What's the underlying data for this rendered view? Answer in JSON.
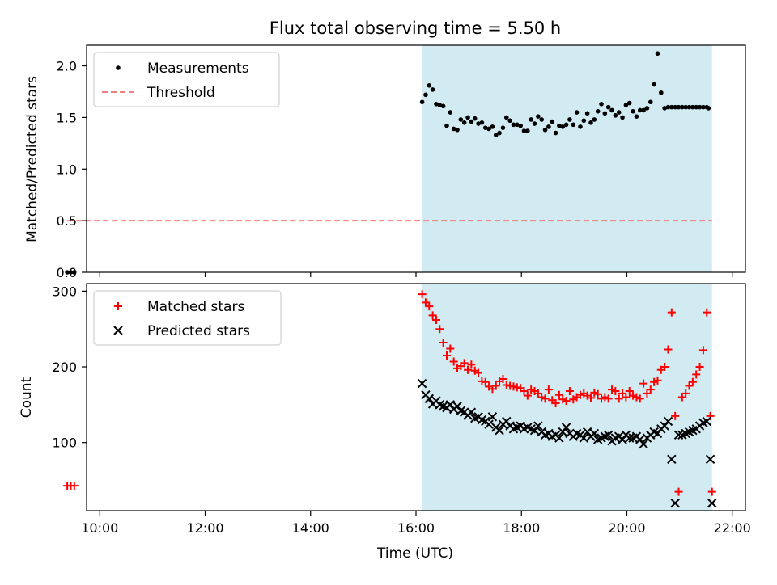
{
  "figure": {
    "title": "Flux total observing time = 5.50 h"
  },
  "colors": {
    "measurements": "#000000",
    "threshold": "#f08080",
    "matched": "#ff0000",
    "predicted": "#000000",
    "shade": "#add8e6"
  },
  "chart_data": [
    {
      "type": "scatter",
      "ylabel": "Matched/Predicted stars",
      "xlabel": "",
      "xlim": [
        "09:45",
        "22:15"
      ],
      "ylim": [
        0,
        2.2
      ],
      "yticks": [
        0.0,
        0.5,
        1.0,
        1.5,
        2.0
      ],
      "ytick_labels": [
        "0.0",
        "0.5",
        "1.0",
        "1.5",
        "2.0"
      ],
      "xticks": [
        "10:00",
        "12:00",
        "14:00",
        "16:00",
        "18:00",
        "20:00",
        "22:00"
      ],
      "xtick_labels": [],
      "legend": {
        "location": "upper-left",
        "entries": [
          "Measurements",
          "Threshold"
        ]
      },
      "shaded_span": {
        "x": [
          "16:07",
          "21:37"
        ]
      },
      "series": [
        {
          "name": "Measurements",
          "style": "dots",
          "x": [
            "09:23",
            "09:27",
            "09:31",
            "16:07",
            "16:11",
            "16:15",
            "16:19",
            "16:23",
            "16:27",
            "16:31",
            "16:35",
            "16:39",
            "16:43",
            "16:47",
            "16:51",
            "16:55",
            "16:59",
            "17:03",
            "17:07",
            "17:11",
            "17:15",
            "17:19",
            "17:23",
            "17:27",
            "17:31",
            "17:35",
            "17:39",
            "17:43",
            "17:47",
            "17:51",
            "17:55",
            "17:59",
            "18:03",
            "18:07",
            "18:11",
            "18:15",
            "18:19",
            "18:23",
            "18:27",
            "18:31",
            "18:35",
            "18:39",
            "18:43",
            "18:47",
            "18:51",
            "18:55",
            "18:59",
            "19:03",
            "19:07",
            "19:11",
            "19:15",
            "19:19",
            "19:23",
            "19:27",
            "19:31",
            "19:35",
            "19:39",
            "19:43",
            "19:47",
            "19:51",
            "19:55",
            "19:59",
            "20:03",
            "20:07",
            "20:11",
            "20:15",
            "20:19",
            "20:23",
            "20:27",
            "20:31",
            "20:35",
            "20:39",
            "20:43",
            "20:47",
            "20:51",
            "20:55",
            "20:59",
            "21:03",
            "21:07",
            "21:11",
            "21:15",
            "21:19",
            "21:23",
            "21:27",
            "21:31",
            "21:33"
          ],
          "y": [
            0.0,
            0.0,
            0.0,
            1.65,
            1.72,
            1.81,
            1.77,
            1.63,
            1.62,
            1.61,
            1.42,
            1.55,
            1.39,
            1.38,
            1.48,
            1.45,
            1.5,
            1.46,
            1.49,
            1.44,
            1.45,
            1.4,
            1.39,
            1.41,
            1.33,
            1.35,
            1.4,
            1.5,
            1.47,
            1.43,
            1.43,
            1.42,
            1.37,
            1.37,
            1.48,
            1.44,
            1.51,
            1.48,
            1.38,
            1.41,
            1.46,
            1.35,
            1.42,
            1.41,
            1.43,
            1.48,
            1.43,
            1.55,
            1.41,
            1.47,
            1.54,
            1.45,
            1.48,
            1.56,
            1.63,
            1.54,
            1.6,
            1.57,
            1.52,
            1.55,
            1.5,
            1.62,
            1.64,
            1.56,
            1.51,
            1.57,
            1.57,
            1.59,
            1.65,
            1.82,
            2.12,
            1.74,
            1.59,
            1.6,
            1.6,
            1.6,
            1.6,
            1.6,
            1.6,
            1.6,
            1.6,
            1.6,
            1.6,
            1.6,
            1.6,
            1.59
          ]
        },
        {
          "name": "Threshold",
          "style": "dashed-line",
          "x": [
            "09:23",
            "21:37"
          ],
          "y": [
            0.5,
            0.5
          ]
        }
      ]
    },
    {
      "type": "scatter",
      "ylabel": "Count",
      "xlabel": "Time (UTC)",
      "xlim": [
        "09:45",
        "22:15"
      ],
      "ylim": [
        10,
        310
      ],
      "yticks": [
        100,
        200,
        300
      ],
      "ytick_labels": [
        "100",
        "200",
        "300"
      ],
      "xticks": [
        "10:00",
        "12:00",
        "14:00",
        "16:00",
        "18:00",
        "20:00",
        "22:00"
      ],
      "xtick_labels": [
        "10:00",
        "12:00",
        "14:00",
        "16:00",
        "18:00",
        "20:00",
        "22:00"
      ],
      "legend": {
        "location": "upper-left",
        "entries": [
          "Matched stars",
          "Predicted stars"
        ]
      },
      "shaded_span": {
        "x": [
          "16:07",
          "21:37"
        ]
      },
      "series": [
        {
          "name": "Matched stars",
          "marker": "plus",
          "x": [
            "09:23",
            "09:27",
            "09:31",
            "16:07",
            "16:11",
            "16:15",
            "16:19",
            "16:23",
            "16:27",
            "16:31",
            "16:35",
            "16:39",
            "16:43",
            "16:47",
            "16:51",
            "16:55",
            "16:59",
            "17:03",
            "17:07",
            "17:11",
            "17:15",
            "17:19",
            "17:23",
            "17:27",
            "17:31",
            "17:35",
            "17:39",
            "17:43",
            "17:47",
            "17:51",
            "17:55",
            "17:59",
            "18:03",
            "18:07",
            "18:11",
            "18:15",
            "18:19",
            "18:23",
            "18:27",
            "18:31",
            "18:35",
            "18:39",
            "18:43",
            "18:47",
            "18:51",
            "18:55",
            "18:59",
            "19:03",
            "19:07",
            "19:11",
            "19:15",
            "19:19",
            "19:23",
            "19:27",
            "19:31",
            "19:35",
            "19:39",
            "19:43",
            "19:47",
            "19:51",
            "19:55",
            "19:59",
            "20:03",
            "20:07",
            "20:11",
            "20:15",
            "20:19",
            "20:23",
            "20:27",
            "20:31",
            "20:35",
            "20:39",
            "20:43",
            "20:47",
            "20:51",
            "20:55",
            "20:59",
            "21:03",
            "21:07",
            "21:11",
            "21:15",
            "21:19",
            "21:23",
            "21:27",
            "21:31",
            "21:35",
            "21:37"
          ],
          "y": [
            43,
            43,
            43,
            296,
            285,
            280,
            268,
            262,
            250,
            232,
            215,
            224,
            207,
            198,
            201,
            205,
            196,
            203,
            195,
            192,
            181,
            180,
            174,
            171,
            175,
            181,
            184,
            176,
            175,
            174,
            173,
            172,
            168,
            162,
            170,
            168,
            165,
            160,
            158,
            170,
            156,
            152,
            163,
            157,
            155,
            168,
            157,
            160,
            163,
            165,
            162,
            159,
            166,
            164,
            158,
            160,
            158,
            170,
            168,
            158,
            165,
            160,
            168,
            162,
            160,
            158,
            178,
            165,
            170,
            180,
            182,
            196,
            200,
            223,
            272,
            135,
            35,
            160,
            165,
            175,
            180,
            190,
            200,
            222,
            272,
            135,
            35
          ]
        },
        {
          "name": "Predicted stars",
          "marker": "x",
          "x": [
            "16:07",
            "16:11",
            "16:15",
            "16:19",
            "16:23",
            "16:27",
            "16:31",
            "16:35",
            "16:39",
            "16:43",
            "16:47",
            "16:51",
            "16:55",
            "16:59",
            "17:03",
            "17:07",
            "17:11",
            "17:15",
            "17:19",
            "17:23",
            "17:27",
            "17:31",
            "17:35",
            "17:39",
            "17:43",
            "17:47",
            "17:51",
            "17:55",
            "17:59",
            "18:03",
            "18:07",
            "18:11",
            "18:15",
            "18:19",
            "18:23",
            "18:27",
            "18:31",
            "18:35",
            "18:39",
            "18:43",
            "18:47",
            "18:51",
            "18:55",
            "18:59",
            "19:03",
            "19:07",
            "19:11",
            "19:15",
            "19:19",
            "19:23",
            "19:27",
            "19:31",
            "19:35",
            "19:39",
            "19:43",
            "19:47",
            "19:51",
            "19:55",
            "19:59",
            "20:03",
            "20:07",
            "20:11",
            "20:15",
            "20:19",
            "20:23",
            "20:27",
            "20:31",
            "20:35",
            "20:39",
            "20:43",
            "20:47",
            "20:51",
            "20:55",
            "20:59",
            "21:03",
            "21:07",
            "21:11",
            "21:15",
            "21:19",
            "21:23",
            "21:27",
            "21:31",
            "21:35",
            "21:37"
          ],
          "y": [
            178,
            163,
            158,
            151,
            155,
            150,
            148,
            146,
            150,
            144,
            148,
            142,
            140,
            136,
            140,
            132,
            134,
            130,
            128,
            124,
            134,
            120,
            116,
            124,
            128,
            122,
            118,
            120,
            122,
            118,
            120,
            118,
            116,
            122,
            114,
            110,
            112,
            108,
            110,
            106,
            114,
            120,
            112,
            108,
            112,
            110,
            106,
            114,
            108,
            112,
            104,
            106,
            108,
            110,
            102,
            106,
            108,
            104,
            110,
            106,
            106,
            108,
            104,
            98,
            106,
            110,
            114,
            112,
            118,
            122,
            128,
            78,
            20,
            110,
            110,
            112,
            114,
            116,
            118,
            122,
            126,
            128,
            78,
            20
          ]
        }
      ]
    }
  ]
}
